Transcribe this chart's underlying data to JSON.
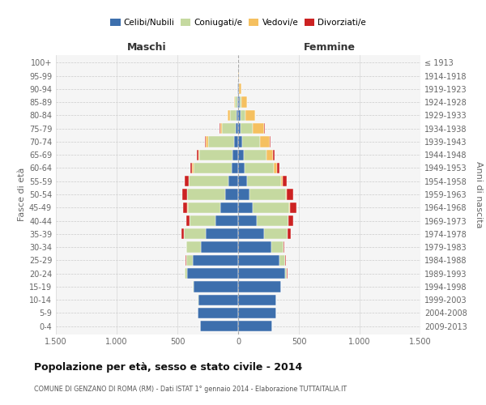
{
  "age_groups": [
    "0-4",
    "5-9",
    "10-14",
    "15-19",
    "20-24",
    "25-29",
    "30-34",
    "35-39",
    "40-44",
    "45-49",
    "50-54",
    "55-59",
    "60-64",
    "65-69",
    "70-74",
    "75-79",
    "80-84",
    "85-89",
    "90-94",
    "95-99",
    "100+"
  ],
  "birth_years": [
    "2009-2013",
    "2004-2008",
    "1999-2003",
    "1994-1998",
    "1989-1993",
    "1984-1988",
    "1979-1983",
    "1974-1978",
    "1969-1973",
    "1964-1968",
    "1959-1963",
    "1954-1958",
    "1949-1953",
    "1944-1948",
    "1939-1943",
    "1934-1938",
    "1929-1933",
    "1924-1928",
    "1919-1923",
    "1914-1918",
    "≤ 1913"
  ],
  "maschi_celibi": [
    315,
    335,
    330,
    370,
    420,
    375,
    310,
    270,
    185,
    145,
    105,
    80,
    55,
    45,
    35,
    20,
    15,
    8,
    5,
    2,
    2
  ],
  "maschi_coniugati": [
    0,
    0,
    1,
    4,
    18,
    55,
    115,
    175,
    215,
    270,
    315,
    325,
    315,
    275,
    215,
    115,
    55,
    18,
    3,
    0,
    0
  ],
  "maschi_vedovi": [
    0,
    0,
    0,
    0,
    0,
    0,
    0,
    1,
    2,
    2,
    3,
    5,
    7,
    10,
    18,
    14,
    18,
    8,
    2,
    0,
    0
  ],
  "maschi_divorziati": [
    0,
    0,
    0,
    0,
    1,
    2,
    4,
    18,
    28,
    38,
    38,
    28,
    18,
    8,
    5,
    4,
    2,
    0,
    0,
    0,
    0
  ],
  "femmine_nubili": [
    280,
    310,
    310,
    350,
    385,
    340,
    270,
    210,
    150,
    120,
    95,
    75,
    55,
    45,
    35,
    22,
    18,
    12,
    6,
    2,
    2
  ],
  "femmine_coniugate": [
    0,
    0,
    1,
    4,
    18,
    48,
    105,
    195,
    260,
    300,
    295,
    275,
    235,
    185,
    145,
    95,
    45,
    12,
    3,
    0,
    0
  ],
  "femmine_vedove": [
    0,
    0,
    0,
    0,
    0,
    0,
    1,
    3,
    4,
    9,
    13,
    18,
    28,
    58,
    78,
    98,
    78,
    48,
    18,
    2,
    0
  ],
  "femmine_divorziate": [
    0,
    0,
    0,
    0,
    1,
    2,
    7,
    23,
    38,
    52,
    48,
    33,
    23,
    9,
    7,
    4,
    2,
    0,
    0,
    0,
    0
  ],
  "colors": {
    "celibi_nubili": "#3d6fad",
    "coniugati": "#c5d9a0",
    "vedovi": "#f5c060",
    "divorziati": "#cc2222"
  },
  "xlim": 1500,
  "xticks": [
    -1500,
    -1000,
    -500,
    0,
    500,
    1000,
    1500
  ],
  "xticklabels": [
    "1.500",
    "1.000",
    "500",
    "0",
    "500",
    "1.000",
    "1.500"
  ],
  "title": "Popolazione per età, sesso e stato civile - 2014",
  "subtitle": "COMUNE DI GENZANO DI ROMA (RM) - Dati ISTAT 1° gennaio 2014 - Elaborazione TUTTAITALIA.IT",
  "ylabel_left": "Fasce di età",
  "ylabel_right": "Anni di nascita",
  "header_maschi": "Maschi",
  "header_femmine": "Femmine",
  "legend_labels": [
    "Celibi/Nubili",
    "Coniugati/e",
    "Vedovi/e",
    "Divorziati/e"
  ],
  "bg_color": "#f5f5f5",
  "bar_height": 0.82
}
